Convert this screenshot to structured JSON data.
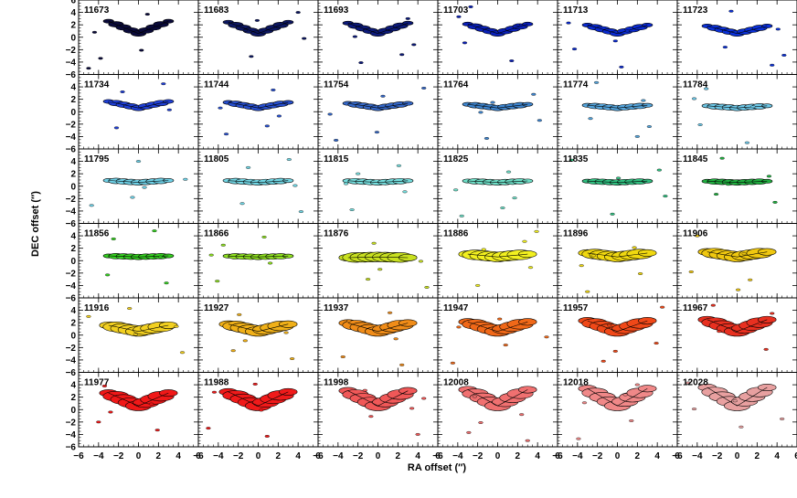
{
  "chart_data": {
    "type": "contour-grid",
    "xlabel": "RA offset (″)",
    "ylabel": "DEC offset (″)",
    "xlim": [
      -6,
      6
    ],
    "ylim": [
      -6,
      6
    ],
    "xticks": [
      "−6",
      "−4",
      "−2",
      "0",
      "2",
      "4",
      "6"
    ],
    "yticks": [
      "6",
      "4",
      "2",
      "0",
      "−2",
      "−4",
      "−6"
    ],
    "rows": 6,
    "cols": 6,
    "panels": [
      {
        "label": "11673",
        "color": "#0a0a3a"
      },
      {
        "label": "11683",
        "color": "#0c1660"
      },
      {
        "label": "11693",
        "color": "#0c1a7a"
      },
      {
        "label": "11703",
        "color": "#0a20b8"
      },
      {
        "label": "11713",
        "color": "#0a2ad0"
      },
      {
        "label": "11723",
        "color": "#0a30d8"
      },
      {
        "label": "11734",
        "color": "#1f3fd6"
      },
      {
        "label": "11744",
        "color": "#2850d0"
      },
      {
        "label": "11754",
        "color": "#3568c8"
      },
      {
        "label": "11764",
        "color": "#3f86d0"
      },
      {
        "label": "11774",
        "color": "#55a6de"
      },
      {
        "label": "11784",
        "color": "#6dc8e8"
      },
      {
        "label": "11795",
        "color": "#6fd2e8"
      },
      {
        "label": "11805",
        "color": "#72d8e6"
      },
      {
        "label": "11815",
        "color": "#76e0e0"
      },
      {
        "label": "11825",
        "color": "#6ee0c8"
      },
      {
        "label": "11835",
        "color": "#30c080"
      },
      {
        "label": "11845",
        "color": "#20b040"
      },
      {
        "label": "11856",
        "color": "#34d020"
      },
      {
        "label": "11866",
        "color": "#8ee020"
      },
      {
        "label": "11876",
        "color": "#c8e020"
      },
      {
        "label": "11886",
        "color": "#f2f020"
      },
      {
        "label": "11896",
        "color": "#f0d810"
      },
      {
        "label": "11906",
        "color": "#f0c810"
      },
      {
        "label": "11916",
        "color": "#f2d020"
      },
      {
        "label": "11927",
        "color": "#f0b018"
      },
      {
        "label": "11937",
        "color": "#f08c18"
      },
      {
        "label": "11947",
        "color": "#f06818"
      },
      {
        "label": "11957",
        "color": "#f04818"
      },
      {
        "label": "11967",
        "color": "#e83020"
      },
      {
        "label": "11977",
        "color": "#f01818"
      },
      {
        "label": "11988",
        "color": "#f01a1a"
      },
      {
        "label": "11998",
        "color": "#f05858"
      },
      {
        "label": "12008",
        "color": "#f07070"
      },
      {
        "label": "12018",
        "color": "#f08888"
      },
      {
        "label": "12028",
        "color": "#e8a0a0"
      }
    ]
  }
}
